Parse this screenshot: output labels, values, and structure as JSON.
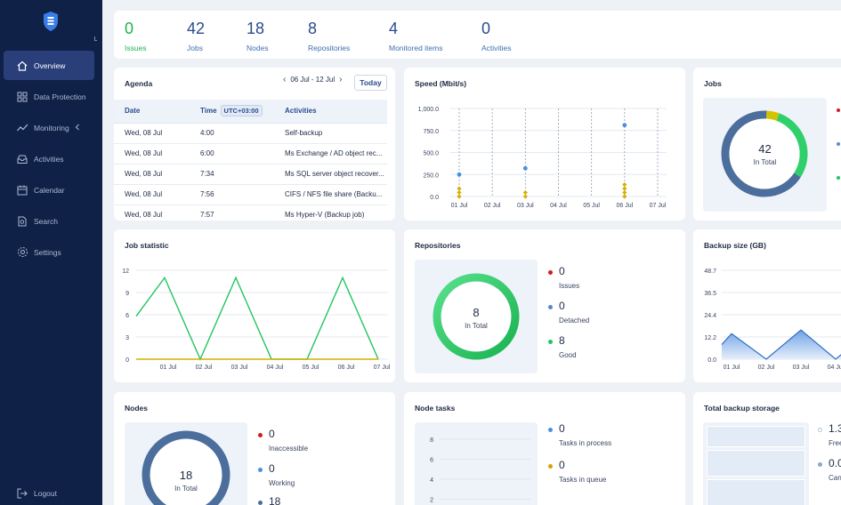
{
  "sidebar": {
    "items": [
      {
        "label": "Overview",
        "icon": "home-icon"
      },
      {
        "label": "Data Protection",
        "icon": "grid-icon"
      },
      {
        "label": "Monitoring",
        "icon": "pulse-icon"
      },
      {
        "label": "Activities",
        "icon": "inbox-icon"
      },
      {
        "label": "Calendar",
        "icon": "calendar-icon"
      },
      {
        "label": "Search",
        "icon": "search-icon"
      },
      {
        "label": "Settings",
        "icon": "gear-icon"
      }
    ],
    "logout": "Logout"
  },
  "stats": [
    {
      "value": "0",
      "label": "Issues"
    },
    {
      "value": "42",
      "label": "Jobs"
    },
    {
      "value": "18",
      "label": "Nodes"
    },
    {
      "value": "8",
      "label": "Repositories"
    },
    {
      "value": "4",
      "label": "Monitored items"
    },
    {
      "value": "0",
      "label": "Activities"
    }
  ],
  "agenda": {
    "title": "Agenda",
    "range": "06 Jul - 12 Jul",
    "today": "Today",
    "col_date": "Date",
    "col_time": "Time",
    "utc": "UTC+03:00",
    "col_activities": "Activities",
    "rows": [
      {
        "date": "Wed, 08 Jul",
        "time": "4:00",
        "activity": "Self-backup"
      },
      {
        "date": "Wed, 08 Jul",
        "time": "6:00",
        "activity": "Ms Exchange / AD object rec..."
      },
      {
        "date": "Wed, 08 Jul",
        "time": "7:34",
        "activity": "Ms SQL server object recover..."
      },
      {
        "date": "Wed, 08 Jul",
        "time": "7:56",
        "activity": "CIFS / NFS file share (Backu..."
      },
      {
        "date": "Wed, 08 Jul",
        "time": "7:57",
        "activity": "Ms Hyper-V (Backup job)"
      }
    ]
  },
  "speed": {
    "title": "Speed (Mbit/s)",
    "chart_data": {
      "type": "scatter",
      "categories": [
        "01 Jul",
        "02 Jul",
        "03 Jul",
        "04 Jul",
        "05 Jul",
        "06 Jul",
        "07 Jul"
      ],
      "y_ticks": [
        "1,000.0",
        "750.0",
        "500.0",
        "250.0",
        "0.0"
      ],
      "ylim": [
        0,
        1000
      ],
      "series": [
        {
          "color": "#4a8fe0",
          "points": [
            [
              0,
              250
            ],
            [
              2,
              320
            ],
            [
              5,
              810
            ]
          ]
        },
        {
          "color": "#d4b100",
          "points": [
            [
              0,
              0
            ],
            [
              0,
              45
            ],
            [
              0,
              90
            ],
            [
              2,
              0
            ],
            [
              2,
              45
            ],
            [
              5,
              0
            ],
            [
              5,
              45
            ],
            [
              5,
              90
            ],
            [
              5,
              135
            ]
          ]
        }
      ]
    }
  },
  "jobs": {
    "title": "Jobs",
    "total": "42",
    "total_label": "In Total",
    "chart_data": {
      "type": "pie",
      "values": [
        2,
        12,
        28
      ],
      "colors": [
        "#d4c400",
        "#2fd06b",
        "#4b6e9c"
      ]
    }
  },
  "job_statistic": {
    "title": "Job statistic",
    "chart_data": {
      "type": "line",
      "categories": [
        "01 Jul",
        "02 Jul",
        "03 Jul",
        "04 Jul",
        "05 Jul",
        "06 Jul",
        "07 Jul"
      ],
      "y_ticks": [
        "12",
        "9",
        "6",
        "3",
        "0"
      ],
      "ylim": [
        0,
        12
      ],
      "series": [
        {
          "color": "#22c55e",
          "x": [
            0,
            0.5,
            1.5,
            2.5,
            3.5,
            4.5,
            5.5,
            6.5
          ],
          "values": [
            5.8,
            11,
            0,
            11,
            0,
            0,
            11,
            0
          ]
        },
        {
          "color": "#d4b100",
          "x": [
            0,
            6.5
          ],
          "values": [
            0,
            0
          ]
        }
      ]
    }
  },
  "repositories": {
    "title": "Repositories",
    "total": "8",
    "total_label": "In Total",
    "legend": [
      {
        "value": "0",
        "label": "Issues",
        "color": "#d21c1c"
      },
      {
        "value": "0",
        "label": "Detached",
        "color": "#5b86c4"
      },
      {
        "value": "8",
        "label": "Good",
        "color": "#22c55e"
      }
    ]
  },
  "backup_size": {
    "title": "Backup size (GB)",
    "chart_data": {
      "type": "area",
      "categories": [
        "01 Jul",
        "02 Jul",
        "03 Jul",
        "04 Jul"
      ],
      "y_ticks": [
        "48.7",
        "36.5",
        "24.4",
        "12.2",
        "0.0"
      ],
      "ylim": [
        0,
        48.7
      ],
      "values": [
        14,
        0,
        16,
        0
      ]
    }
  },
  "nodes": {
    "title": "Nodes",
    "total": "18",
    "total_label": "In Total",
    "legend": [
      {
        "value": "0",
        "label": "Inaccessible",
        "color": "#d21c1c"
      },
      {
        "value": "0",
        "label": "Working",
        "color": "#4a8fe0"
      },
      {
        "value": "18",
        "label": "",
        "color": "#4b6e9c"
      }
    ]
  },
  "node_tasks": {
    "title": "Node tasks",
    "y_ticks": [
      "8",
      "6",
      "4",
      "2"
    ],
    "legend": [
      {
        "value": "0",
        "label": "Tasks in process",
        "color": "#4a8fe0"
      },
      {
        "value": "0",
        "label": "Tasks in queue",
        "color": "#d4a300"
      }
    ]
  },
  "total_storage": {
    "title": "Total backup storage",
    "legend": [
      {
        "value": "1.3",
        "label": "Free"
      },
      {
        "value": "0.0",
        "label": "Can"
      }
    ]
  }
}
